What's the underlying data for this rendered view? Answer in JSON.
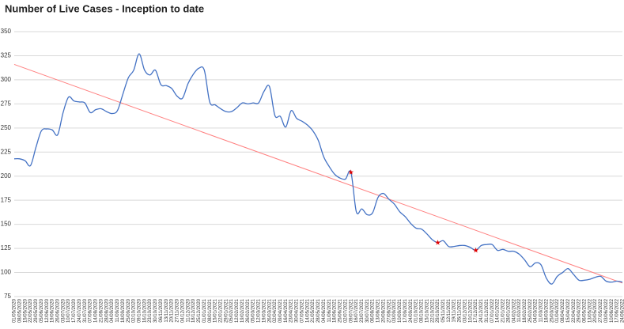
{
  "chart_data": {
    "type": "line",
    "title": "Number of Live Cases - Inception to date",
    "categories": [
      "01/05/2020",
      "08/05/2020",
      "15/05/2020",
      "22/05/2020",
      "29/05/2020",
      "05/06/2020",
      "12/06/2020",
      "19/06/2020",
      "26/06/2020",
      "03/07/2020",
      "10/07/2020",
      "17/07/2020",
      "24/07/2020",
      "31/07/2020",
      "07/08/2020",
      "14/08/2020",
      "21/08/2020",
      "28/08/2020",
      "04/09/2020",
      "11/09/2020",
      "18/09/2020",
      "25/09/2020",
      "02/10/2020",
      "09/10/2020",
      "16/10/2020",
      "23/10/2020",
      "30/10/2020",
      "06/11/2020",
      "13/11/2020",
      "20/11/2020",
      "27/11/2020",
      "04/12/2020",
      "11/12/2020",
      "18/12/2020",
      "25/12/2020",
      "01/01/2021",
      "08/01/2021",
      "15/01/2021",
      "22/01/2021",
      "29/01/2021",
      "05/02/2021",
      "12/02/2021",
      "19/02/2021",
      "26/02/2021",
      "05/03/2021",
      "12/03/2021",
      "19/03/2021",
      "26/03/2021",
      "02/04/2021",
      "09/04/2021",
      "16/04/2021",
      "23/04/2021",
      "30/04/2021",
      "07/05/2021",
      "14/05/2021",
      "21/05/2021",
      "28/05/2021",
      "04/06/2021",
      "11/06/2021",
      "18/06/2021",
      "25/06/2021",
      "02/07/2021",
      "09/07/2021",
      "16/07/2021",
      "23/07/2021",
      "30/07/2021",
      "06/08/2021",
      "13/08/2021",
      "20/08/2021",
      "27/08/2021",
      "03/09/2021",
      "10/09/2021",
      "17/09/2021",
      "24/09/2021",
      "01/10/2021",
      "08/10/2021",
      "15/10/2021",
      "22/10/2021",
      "29/10/2021",
      "05/11/2021",
      "12/11/2021",
      "19/11/2021",
      "26/11/2021",
      "03/12/2021",
      "10/12/2021",
      "17/12/2021",
      "24/12/2021",
      "31/12/2021",
      "07/01/2022",
      "14/01/2022",
      "21/01/2022",
      "28/01/2022",
      "04/02/2022",
      "11/02/2022",
      "18/02/2022",
      "25/02/2022",
      "04/03/2022",
      "11/03/2022",
      "18/03/2022",
      "25/03/2022",
      "01/04/2022",
      "08/04/2022",
      "15/04/2022",
      "22/04/2022",
      "29/04/2022",
      "06/05/2022",
      "13/05/2022",
      "20/05/2022",
      "27/05/2022",
      "03/06/2022",
      "10/06/2022",
      "17/06/2022",
      "24/06/2022"
    ],
    "series": [
      {
        "color": "#4472c4",
        "values": [
          218,
          218,
          216,
          211,
          230,
          247,
          249,
          248,
          243,
          266,
          282,
          278,
          277,
          276,
          266,
          269,
          270,
          267,
          265,
          268,
          285,
          302,
          310,
          327,
          310,
          305,
          310,
          295,
          294,
          291,
          283,
          281,
          296,
          306,
          312,
          310,
          277,
          274,
          270,
          267,
          267,
          271,
          276,
          275,
          276,
          276,
          288,
          293,
          263,
          262,
          251,
          268,
          260,
          257,
          253,
          247,
          237,
          220,
          210,
          202,
          198,
          197,
          204,
          163,
          166,
          160,
          162,
          178,
          182,
          176,
          171,
          163,
          158,
          151,
          146,
          145,
          140,
          134,
          131,
          133,
          127,
          127,
          128,
          128,
          126,
          123,
          128,
          129,
          129,
          123,
          124,
          122,
          122,
          119,
          113,
          106,
          110,
          108,
          94,
          88,
          96,
          100,
          104,
          98,
          92,
          92,
          93,
          95,
          96,
          91,
          90,
          91,
          90
        ]
      }
    ],
    "highlight_indices": [
      62,
      78,
      85
    ],
    "highlight_color": "#e00000",
    "trendline": {
      "color": "#ff8080",
      "values": [
        316,
        89
      ]
    },
    "ylim": [
      75,
      350
    ],
    "yticks": [
      75,
      100,
      125,
      150,
      175,
      200,
      225,
      250,
      275,
      300,
      325,
      350
    ],
    "grid": true
  }
}
